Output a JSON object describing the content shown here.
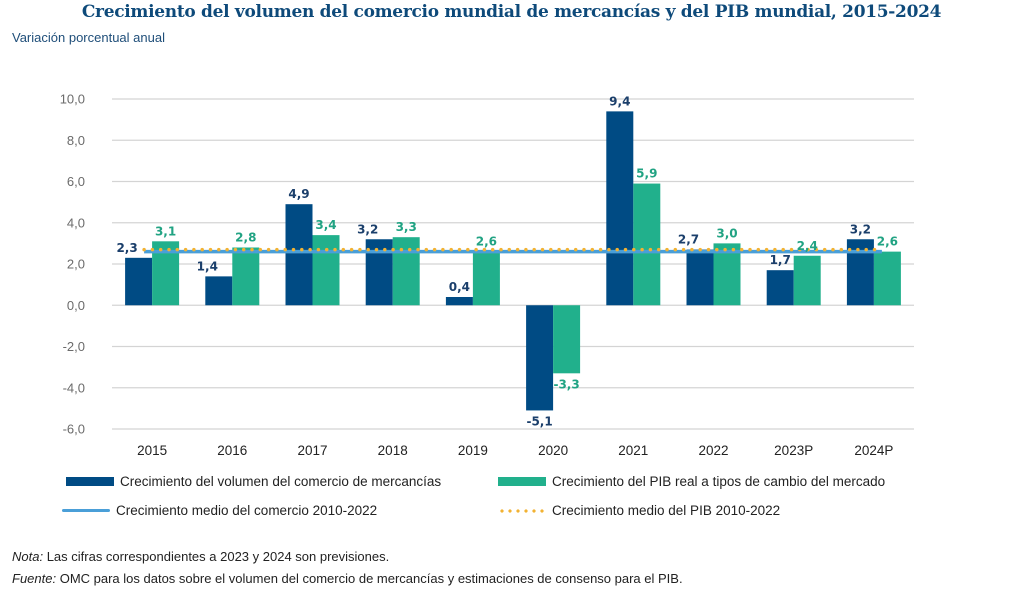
{
  "chart_data": {
    "type": "bar",
    "title": "Crecimiento del volumen del comercio mundial de mercancías y del PIB mundial, 2015-2024",
    "subtitle": "Variación porcentual anual",
    "xlabel": "",
    "ylabel": "Variación porcentual anual",
    "categories": [
      "2015",
      "2016",
      "2017",
      "2018",
      "2019",
      "2020",
      "2021",
      "2022",
      "2023P",
      "2024P"
    ],
    "series": [
      {
        "name": "Crecimiento del volumen del comercio de mercancías",
        "color": "#004b84",
        "label_color": "#1b3f6b",
        "values": [
          2.3,
          1.4,
          4.9,
          3.2,
          0.4,
          -5.1,
          9.4,
          2.7,
          1.7,
          3.2
        ],
        "labels": [
          "2,3",
          "1,4",
          "4,9",
          "3,2",
          "0,4",
          "-5,1",
          "9,4",
          "2,7",
          "1,7",
          "3,2"
        ]
      },
      {
        "name": "Crecimiento del PIB real a tipos de cambio del mercado",
        "color": "#21b08c",
        "label_color": "#21a383",
        "values": [
          3.1,
          2.8,
          3.4,
          3.3,
          2.6,
          -3.3,
          5.9,
          3.0,
          2.4,
          2.6
        ],
        "labels": [
          "3,1",
          "2,8",
          "3,4",
          "3,3",
          "2,6",
          "-3,3",
          "5,9",
          "3,0",
          "2,4",
          "2,6"
        ]
      }
    ],
    "reference_lines": [
      {
        "name": "Crecimiento medio del comercio 2010-2022",
        "value": 2.6,
        "style": "solid",
        "color": "#4a9fd8"
      },
      {
        "name": "Crecimiento medio del PIB 2010-2022",
        "value": 2.7,
        "style": "dotted",
        "color": "#f2b233"
      }
    ],
    "ylim": [
      -6,
      10
    ],
    "yticks": [
      10,
      8,
      6,
      4,
      2,
      0,
      -2,
      -4,
      -6
    ],
    "ytick_labels": [
      "10,0",
      "8,0",
      "6,0",
      "4,0",
      "2,0",
      "0,0",
      "-2,0",
      "-4,0",
      "-6,0"
    ],
    "grid": true,
    "legend_position": "bottom"
  },
  "legend": {
    "trade_bar": "Crecimiento del volumen del comercio de mercancías",
    "gdp_bar": "Crecimiento del PIB real a tipos de cambio del mercado",
    "trade_avg": "Crecimiento medio del comercio 2010-2022",
    "gdp_avg": "Crecimiento medio del PIB 2010-2022"
  },
  "notes": {
    "nota_label": "Nota:",
    "nota_text": " Las cifras correspondientes a 2023 y 2024 son previsiones.",
    "fuente_label": "Fuente:",
    "fuente_text": " OMC para los datos sobre el volumen del comercio de mercancías y estimaciones de consenso para el PIB."
  }
}
